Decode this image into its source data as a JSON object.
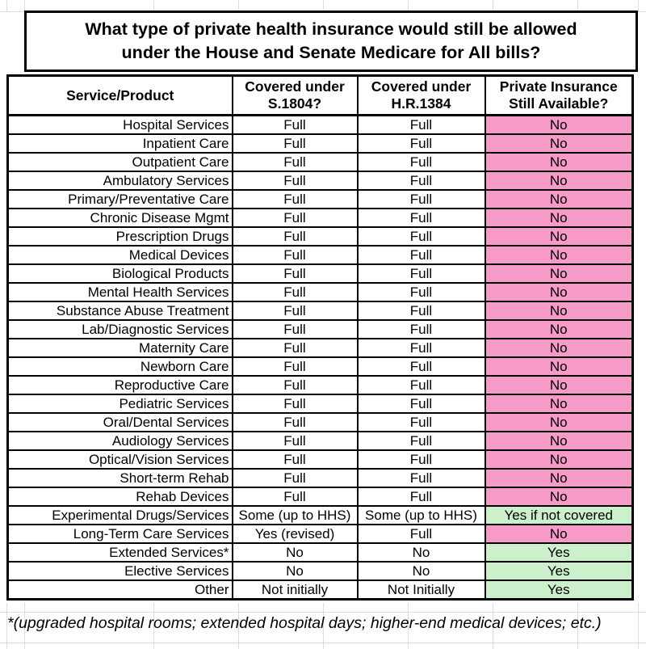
{
  "chart_data": {
    "type": "table",
    "title": "What type of private health insurance would still be allowed\nunder the House and Senate Medicare for All bills?",
    "columns": [
      "Service/Product",
      "Covered under\nS.1804?",
      "Covered under\nH.R.1384",
      "Private Insurance\nStill Available?"
    ],
    "rows": [
      {
        "service": "Hospital Services",
        "s1804": "Full",
        "hr1384": "Full",
        "private": "No",
        "private_bg": "pink"
      },
      {
        "service": "Inpatient Care",
        "s1804": "Full",
        "hr1384": "Full",
        "private": "No",
        "private_bg": "pink"
      },
      {
        "service": "Outpatient Care",
        "s1804": "Full",
        "hr1384": "Full",
        "private": "No",
        "private_bg": "pink"
      },
      {
        "service": "Ambulatory Services",
        "s1804": "Full",
        "hr1384": "Full",
        "private": "No",
        "private_bg": "pink"
      },
      {
        "service": "Primary/Preventative Care",
        "s1804": "Full",
        "hr1384": "Full",
        "private": "No",
        "private_bg": "pink"
      },
      {
        "service": "Chronic Disease Mgmt",
        "s1804": "Full",
        "hr1384": "Full",
        "private": "No",
        "private_bg": "pink"
      },
      {
        "service": "Prescription Drugs",
        "s1804": "Full",
        "hr1384": "Full",
        "private": "No",
        "private_bg": "pink"
      },
      {
        "service": "Medical Devices",
        "s1804": "Full",
        "hr1384": "Full",
        "private": "No",
        "private_bg": "pink"
      },
      {
        "service": "Biological Products",
        "s1804": "Full",
        "hr1384": "Full",
        "private": "No",
        "private_bg": "pink"
      },
      {
        "service": "Mental Health Services",
        "s1804": "Full",
        "hr1384": "Full",
        "private": "No",
        "private_bg": "pink"
      },
      {
        "service": "Substance Abuse Treatment",
        "s1804": "Full",
        "hr1384": "Full",
        "private": "No",
        "private_bg": "pink"
      },
      {
        "service": "Lab/Diagnostic Services",
        "s1804": "Full",
        "hr1384": "Full",
        "private": "No",
        "private_bg": "pink"
      },
      {
        "service": "Maternity Care",
        "s1804": "Full",
        "hr1384": "Full",
        "private": "No",
        "private_bg": "pink"
      },
      {
        "service": "Newborn Care",
        "s1804": "Full",
        "hr1384": "Full",
        "private": "No",
        "private_bg": "pink"
      },
      {
        "service": "Reproductive Care",
        "s1804": "Full",
        "hr1384": "Full",
        "private": "No",
        "private_bg": "pink"
      },
      {
        "service": "Pediatric Services",
        "s1804": "Full",
        "hr1384": "Full",
        "private": "No",
        "private_bg": "pink"
      },
      {
        "service": "Oral/Dental Services",
        "s1804": "Full",
        "hr1384": "Full",
        "private": "No",
        "private_bg": "pink"
      },
      {
        "service": "Audiology Services",
        "s1804": "Full",
        "hr1384": "Full",
        "private": "No",
        "private_bg": "pink"
      },
      {
        "service": "Optical/Vision Services",
        "s1804": "Full",
        "hr1384": "Full",
        "private": "No",
        "private_bg": "pink"
      },
      {
        "service": "Short-term Rehab",
        "s1804": "Full",
        "hr1384": "Full",
        "private": "No",
        "private_bg": "pink"
      },
      {
        "service": "Rehab Devices",
        "s1804": "Full",
        "hr1384": "Full",
        "private": "No",
        "private_bg": "pink"
      },
      {
        "service": "Experimental Drugs/Services",
        "s1804": "Some (up to HHS)",
        "hr1384": "Some (up to HHS)",
        "private": "Yes if not covered",
        "private_bg": "green"
      },
      {
        "service": "Long-Term Care Services",
        "s1804": "Yes (revised)",
        "hr1384": "Full",
        "private": "No",
        "private_bg": "pink"
      },
      {
        "service": "Extended Services*",
        "s1804": "No",
        "hr1384": "No",
        "private": "Yes",
        "private_bg": "green"
      },
      {
        "service": "Elective Services",
        "s1804": "No",
        "hr1384": "No",
        "private": "Yes",
        "private_bg": "green"
      },
      {
        "service": "Other",
        "s1804": "Not initially",
        "hr1384": "Not Initially",
        "private": "Yes",
        "private_bg": "green"
      }
    ],
    "footnote": "*(upgraded hospital rooms; extended hospital days; higher-end medical devices; etc.)",
    "colors": {
      "pink": "#F69AC7",
      "green": "#CBF0CB",
      "border": "#000000",
      "gridline": "#DCDCDC"
    }
  }
}
